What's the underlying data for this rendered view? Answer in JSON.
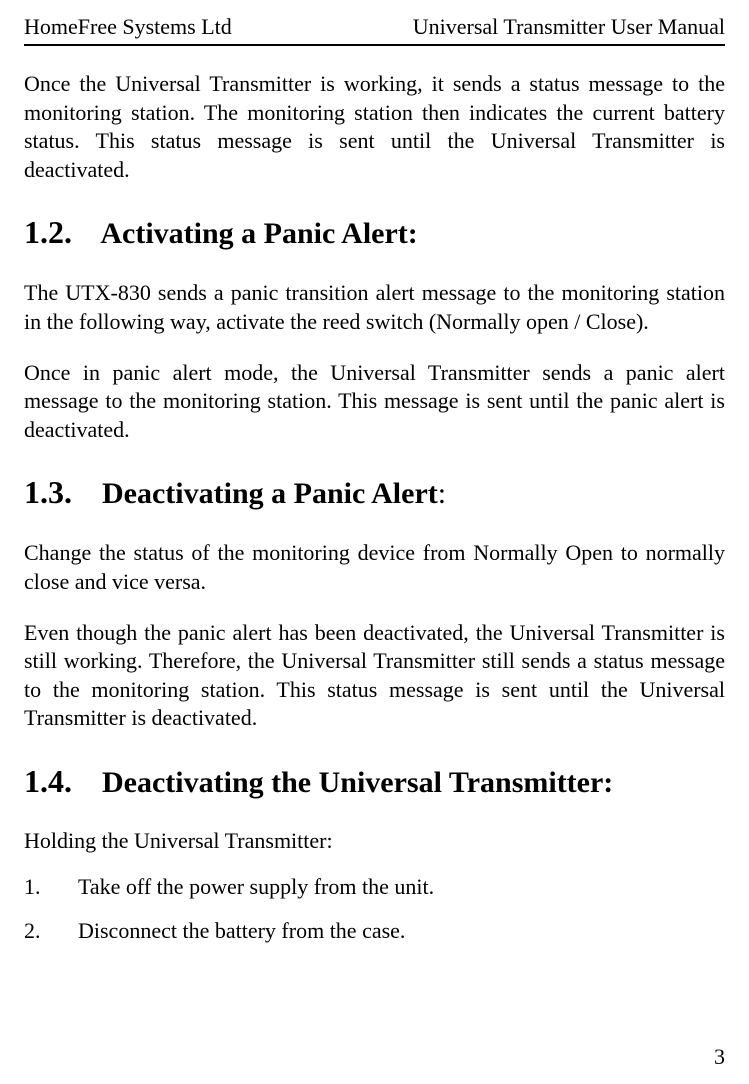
{
  "header": {
    "left": "HomeFree Systems Ltd",
    "right": "Universal Transmitter User Manual"
  },
  "intro_para": "Once the Universal Transmitter is working, it sends a status message to the monitoring station. The monitoring station then indicates the current battery status. This status message is sent until the Universal Transmitter is deactivated.",
  "sections": {
    "s12": {
      "number": "1.2.",
      "title": "Activating a Panic Alert:",
      "para1": "The UTX-830 sends a panic transition alert message to the monitoring station in the following way, activate the reed switch (Normally open / Close).",
      "para2": "Once in panic alert mode, the Universal Transmitter sends a panic alert message to the monitoring station. This message is sent until the panic alert is deactivated."
    },
    "s13": {
      "number": "1.3.",
      "title": "Deactivating a Panic Alert",
      "title_suffix": ":",
      "para1": "Change the status of the monitoring device from Normally Open to normally close and vice versa.",
      "para2": "Even though the panic alert has been deactivated, the Universal Transmitter is still working. Therefore, the Universal Transmitter still sends a status message to the monitoring station. This status message is sent until the Universal Transmitter is deactivated."
    },
    "s14": {
      "number": "1.4.",
      "title": "Deactivating the Universal Transmitter:",
      "intro": "Holding the Universal Transmitter:",
      "steps": {
        "step1_num": "1.",
        "step1_text": "Take off the power supply from the unit.",
        "step2_num": "2.",
        "step2_text": "Disconnect the battery from the case."
      }
    }
  },
  "page_number": "3",
  "styles": {
    "body_font_size": 22,
    "heading_font_size": 30,
    "number_font_size": 32,
    "text_color": "#000000",
    "background_color": "#ffffff"
  }
}
